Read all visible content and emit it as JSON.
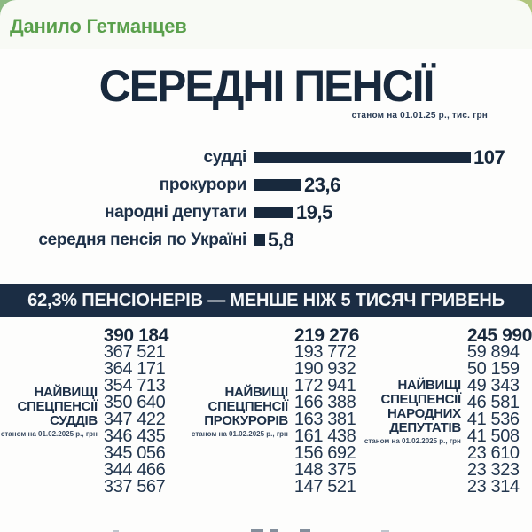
{
  "header": {
    "author": "Данило Гетманцев"
  },
  "colors": {
    "accent_navy": "#18293d",
    "banner_navy": "#1b2d44",
    "author_green": "#5aa04c",
    "bg_gradient_left": "#8cba83",
    "bg_gradient_right": "#b9c77d"
  },
  "poster": {
    "title": "СЕРЕДНІ ПЕНСІЇ",
    "subtitle": "станом на 01.01.25 р., тис. грн",
    "banner": "62,3% ПЕНСІОНЕРІВ — МЕНШЕ НІЖ 5 ТИСЯЧ ГРИВЕНЬ"
  },
  "chart_data": [
    {
      "type": "bar",
      "orientation": "horizontal",
      "title": "СЕРЕДНІ ПЕНСІЇ",
      "subtitle": "станом на 01.01.25 р., тис. грн",
      "unit": "тис. грн",
      "categories": [
        "судді",
        "прокурори",
        "народні депутати",
        "середня пенсія по Україні"
      ],
      "values": [
        107,
        23.6,
        19.5,
        5.8
      ],
      "value_labels": [
        "107",
        "23,6",
        "19,5",
        "5,8"
      ],
      "xlim": [
        0,
        107
      ],
      "grid": false,
      "legend": false,
      "bar_color": "#18293d"
    },
    {
      "type": "table",
      "title_lines": [
        "НАЙВИЩІ",
        "СПЕЦПЕНСІЇ",
        "СУДДІВ"
      ],
      "note": "станом на 01.02.2025 р., грн",
      "values": [
        390184,
        367521,
        364171,
        354713,
        350640,
        347422,
        346435,
        345056,
        344466,
        337567
      ],
      "display": [
        "390 184",
        "367 521",
        "364 171",
        "354 713",
        "350 640",
        "347 422",
        "346 435",
        "345 056",
        "344 466",
        "337 567"
      ]
    },
    {
      "type": "table",
      "title_lines": [
        "НАЙВИЩІ",
        "СПЕЦПЕНСІЇ",
        "ПРОКУРОРІВ"
      ],
      "note": "станом на 01.02.2025 р., грн",
      "values": [
        219276,
        193772,
        190932,
        172941,
        166388,
        163381,
        161438,
        156692,
        148375,
        147521
      ],
      "display": [
        "219 276",
        "193 772",
        "190 932",
        "172 941",
        "166 388",
        "163 381",
        "161 438",
        "156 692",
        "148 375",
        "147 521"
      ]
    },
    {
      "type": "table",
      "title_lines": [
        "НАЙВИЩІ",
        "СПЕЦПЕНСІЇ",
        "НАРОДНИХ",
        "ДЕПУТАТІВ"
      ],
      "note": "станом на 01.02.2025 р., грн",
      "values": [
        245990,
        59894,
        50159,
        49343,
        46581,
        41536,
        41508,
        23610,
        23323,
        23314
      ],
      "display": [
        "245 990",
        "59 894",
        "50 159",
        "49 343",
        "46 581",
        "41 536",
        "41 508",
        "23 610",
        "23 323",
        "23 314"
      ]
    }
  ]
}
